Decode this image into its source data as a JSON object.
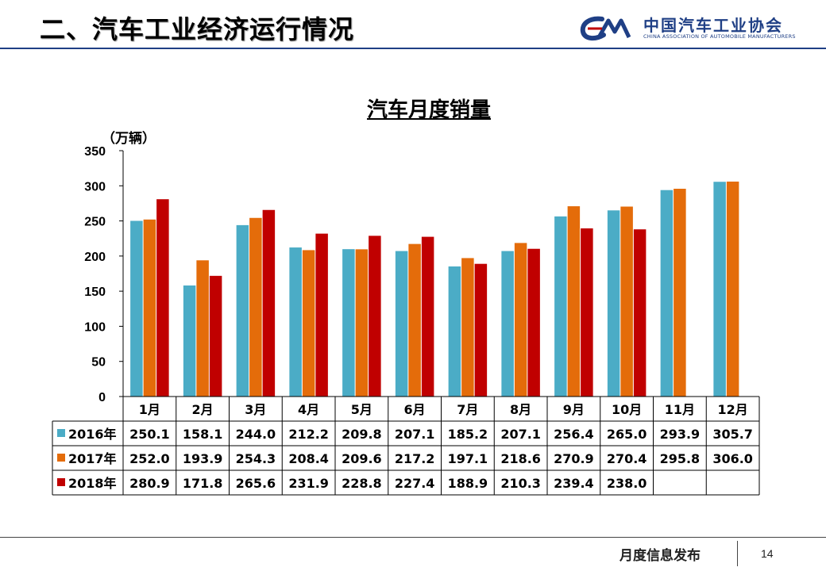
{
  "slide": {
    "title": "二、汽车工业经济运行情况",
    "logo_name": "中国汽车工业协会",
    "logo_en": "CHINA ASSOCIATION OF AUTOMOBILE MANUFACTURERS",
    "footer_text": "月度信息发布",
    "page_number": "14"
  },
  "chart_data": {
    "type": "bar",
    "title": "汽车月度销量",
    "unit_label": "（万辆）",
    "ylim": [
      0,
      350
    ],
    "y_ticks": [
      0,
      50,
      100,
      150,
      200,
      250,
      300,
      350
    ],
    "categories": [
      "1月",
      "2月",
      "3月",
      "4月",
      "5月",
      "6月",
      "7月",
      "8月",
      "9月",
      "10月",
      "11月",
      "12月"
    ],
    "series": [
      {
        "name": "2016年",
        "color": "#4bacc6",
        "values": [
          250.1,
          158.1,
          244.0,
          212.2,
          209.8,
          207.1,
          185.2,
          207.1,
          256.4,
          265.0,
          293.9,
          305.7
        ],
        "labels": [
          "250.1",
          "158.1",
          "244.0",
          "212.2",
          "209.8",
          "207.1",
          "185.2",
          "207.1",
          "256.4",
          "265.0",
          "293.9",
          "305.7"
        ]
      },
      {
        "name": "2017年",
        "color": "#e46c0a",
        "values": [
          252.0,
          193.9,
          254.3,
          208.4,
          209.6,
          217.2,
          197.1,
          218.6,
          270.9,
          270.4,
          295.8,
          306.0
        ],
        "labels": [
          "252.0",
          "193.9",
          "254.3",
          "208.4",
          "209.6",
          "217.2",
          "197.1",
          "218.6",
          "270.9",
          "270.4",
          "295.8",
          "306.0"
        ]
      },
      {
        "name": "2018年",
        "color": "#c00000",
        "values": [
          280.9,
          171.8,
          265.6,
          231.9,
          228.8,
          227.4,
          188.9,
          210.3,
          239.4,
          238.0,
          null,
          null
        ],
        "labels": [
          "280.9",
          "171.8",
          "265.6",
          "231.9",
          "228.8",
          "227.4",
          "188.9",
          "210.3",
          "239.4",
          "238.0",
          "",
          ""
        ]
      }
    ],
    "legend": "in-table",
    "grid": false
  }
}
